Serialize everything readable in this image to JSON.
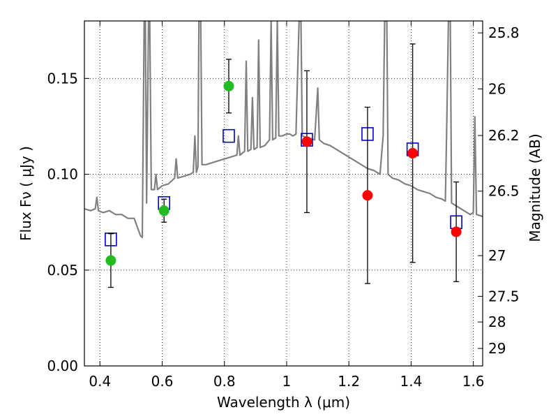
{
  "chart_data": {
    "type": "scatter",
    "xlabel": "Wavelength  λ (μm)",
    "ylabel": "Flux  Fν  ( μJy )",
    "y2label": "Magnitude (AB)",
    "xlim": [
      0.35,
      1.63
    ],
    "ylim": [
      0.0,
      0.18
    ],
    "grid": true,
    "x_ticks": [
      {
        "value": 0.4,
        "label": "0.4"
      },
      {
        "value": 0.6,
        "label": "0.6"
      },
      {
        "value": 0.8,
        "label": "0.8"
      },
      {
        "value": 1.0,
        "label": "1"
      },
      {
        "value": 1.2,
        "label": "1.2"
      },
      {
        "value": 1.4,
        "label": "1.4"
      },
      {
        "value": 1.6,
        "label": "1.6"
      }
    ],
    "y_ticks": [
      {
        "value": 0.0,
        "label": "0.00"
      },
      {
        "value": 0.05,
        "label": "0.05"
      },
      {
        "value": 0.1,
        "label": "0.10"
      },
      {
        "value": 0.15,
        "label": "0.15"
      }
    ],
    "y2_ticks": [
      {
        "mag": 25.8,
        "label": "25.8"
      },
      {
        "mag": 26.0,
        "label": "26"
      },
      {
        "mag": 26.2,
        "label": "26.2"
      },
      {
        "mag": 26.5,
        "label": "26.5"
      },
      {
        "mag": 27.0,
        "label": "27"
      },
      {
        "mag": 27.5,
        "label": "27.5"
      },
      {
        "mag": 28.0,
        "label": "28"
      },
      {
        "mag": 29.0,
        "label": "29"
      }
    ],
    "series": [
      {
        "kind": "observed-optical",
        "color": "#22bb22",
        "marker": "circle",
        "points": [
          {
            "x": 0.435,
            "y": 0.055,
            "err": 0.014
          },
          {
            "x": 0.606,
            "y": 0.081,
            "err": 0.006
          },
          {
            "x": 0.814,
            "y": 0.146,
            "err": 0.014
          }
        ]
      },
      {
        "kind": "observed-nir",
        "color": "#ff0000",
        "marker": "circle",
        "points": [
          {
            "x": 1.065,
            "y": 0.117,
            "err": 0.037
          },
          {
            "x": 1.26,
            "y": 0.089,
            "err": 0.046
          },
          {
            "x": 1.405,
            "y": 0.111,
            "err": 0.057
          },
          {
            "x": 1.545,
            "y": 0.07,
            "err": 0.026
          }
        ]
      },
      {
        "kind": "model-bandpass",
        "color": "#0000cc",
        "marker": "open-square",
        "points": [
          {
            "x": 0.435,
            "y": 0.066
          },
          {
            "x": 0.606,
            "y": 0.085
          },
          {
            "x": 0.814,
            "y": 0.12
          },
          {
            "x": 1.065,
            "y": 0.118
          },
          {
            "x": 1.26,
            "y": 0.121
          },
          {
            "x": 1.405,
            "y": 0.113
          },
          {
            "x": 1.545,
            "y": 0.075
          }
        ]
      },
      {
        "kind": "model-spectrum",
        "color": "#808080",
        "marker": "line",
        "points": [
          [
            0.35,
            0.082
          ],
          [
            0.37,
            0.081
          ],
          [
            0.385,
            0.082
          ],
          [
            0.39,
            0.088
          ],
          [
            0.395,
            0.081
          ],
          [
            0.41,
            0.08
          ],
          [
            0.43,
            0.081
          ],
          [
            0.45,
            0.079
          ],
          [
            0.47,
            0.079
          ],
          [
            0.49,
            0.077
          ],
          [
            0.51,
            0.077
          ],
          [
            0.53,
            0.068
          ],
          [
            0.536,
            0.067
          ],
          [
            0.542,
            0.18
          ],
          [
            0.546,
            0.18
          ],
          [
            0.55,
            0.085
          ],
          [
            0.556,
            0.18
          ],
          [
            0.56,
            0.18
          ],
          [
            0.565,
            0.092
          ],
          [
            0.575,
            0.092
          ],
          [
            0.58,
            0.1
          ],
          [
            0.585,
            0.092
          ],
          [
            0.6,
            0.094
          ],
          [
            0.62,
            0.095
          ],
          [
            0.64,
            0.098
          ],
          [
            0.645,
            0.108
          ],
          [
            0.65,
            0.098
          ],
          [
            0.67,
            0.099
          ],
          [
            0.69,
            0.1
          ],
          [
            0.7,
            0.101
          ],
          [
            0.705,
            0.12
          ],
          [
            0.71,
            0.101
          ],
          [
            0.715,
            0.104
          ],
          [
            0.718,
            0.18
          ],
          [
            0.724,
            0.18
          ],
          [
            0.728,
            0.105
          ],
          [
            0.74,
            0.105
          ],
          [
            0.76,
            0.106
          ],
          [
            0.78,
            0.107
          ],
          [
            0.8,
            0.108
          ],
          [
            0.82,
            0.109
          ],
          [
            0.84,
            0.11
          ],
          [
            0.845,
            0.12
          ],
          [
            0.85,
            0.11
          ],
          [
            0.865,
            0.112
          ],
          [
            0.87,
            0.159
          ],
          [
            0.875,
            0.112
          ],
          [
            0.885,
            0.113
          ],
          [
            0.89,
            0.14
          ],
          [
            0.895,
            0.113
          ],
          [
            0.905,
            0.114
          ],
          [
            0.91,
            0.17
          ],
          [
            0.915,
            0.114
          ],
          [
            0.93,
            0.115
          ],
          [
            0.945,
            0.118
          ],
          [
            0.95,
            0.18
          ],
          [
            0.955,
            0.118
          ],
          [
            0.965,
            0.119
          ],
          [
            0.97,
            0.18
          ],
          [
            0.975,
            0.12
          ],
          [
            0.985,
            0.12
          ],
          [
            1.0,
            0.121
          ],
          [
            1.01,
            0.121
          ],
          [
            1.02,
            0.12
          ],
          [
            1.03,
            0.121
          ],
          [
            1.04,
            0.18
          ],
          [
            1.046,
            0.18
          ],
          [
            1.05,
            0.12
          ],
          [
            1.07,
            0.119
          ],
          [
            1.09,
            0.118
          ],
          [
            1.1,
            0.145
          ],
          [
            1.105,
            0.118
          ],
          [
            1.12,
            0.116
          ],
          [
            1.14,
            0.115
          ],
          [
            1.16,
            0.113
          ],
          [
            1.18,
            0.111
          ],
          [
            1.2,
            0.109
          ],
          [
            1.22,
            0.107
          ],
          [
            1.24,
            0.105
          ],
          [
            1.26,
            0.103
          ],
          [
            1.28,
            0.102
          ],
          [
            1.3,
            0.1
          ],
          [
            1.31,
            0.12
          ],
          [
            1.315,
            0.18
          ],
          [
            1.322,
            0.18
          ],
          [
            1.326,
            0.1
          ],
          [
            1.34,
            0.098
          ],
          [
            1.36,
            0.097
          ],
          [
            1.38,
            0.095
          ],
          [
            1.4,
            0.094
          ],
          [
            1.42,
            0.092
          ],
          [
            1.44,
            0.091
          ],
          [
            1.46,
            0.09
          ],
          [
            1.48,
            0.088
          ],
          [
            1.5,
            0.087
          ],
          [
            1.51,
            0.086
          ],
          [
            1.515,
            0.13
          ],
          [
            1.52,
            0.18
          ],
          [
            1.526,
            0.18
          ],
          [
            1.53,
            0.085
          ],
          [
            1.55,
            0.083
          ],
          [
            1.57,
            0.081
          ],
          [
            1.59,
            0.079
          ],
          [
            1.6,
            0.08
          ],
          [
            1.605,
            0.13
          ],
          [
            1.61,
            0.079
          ],
          [
            1.63,
            0.078
          ]
        ]
      }
    ]
  }
}
